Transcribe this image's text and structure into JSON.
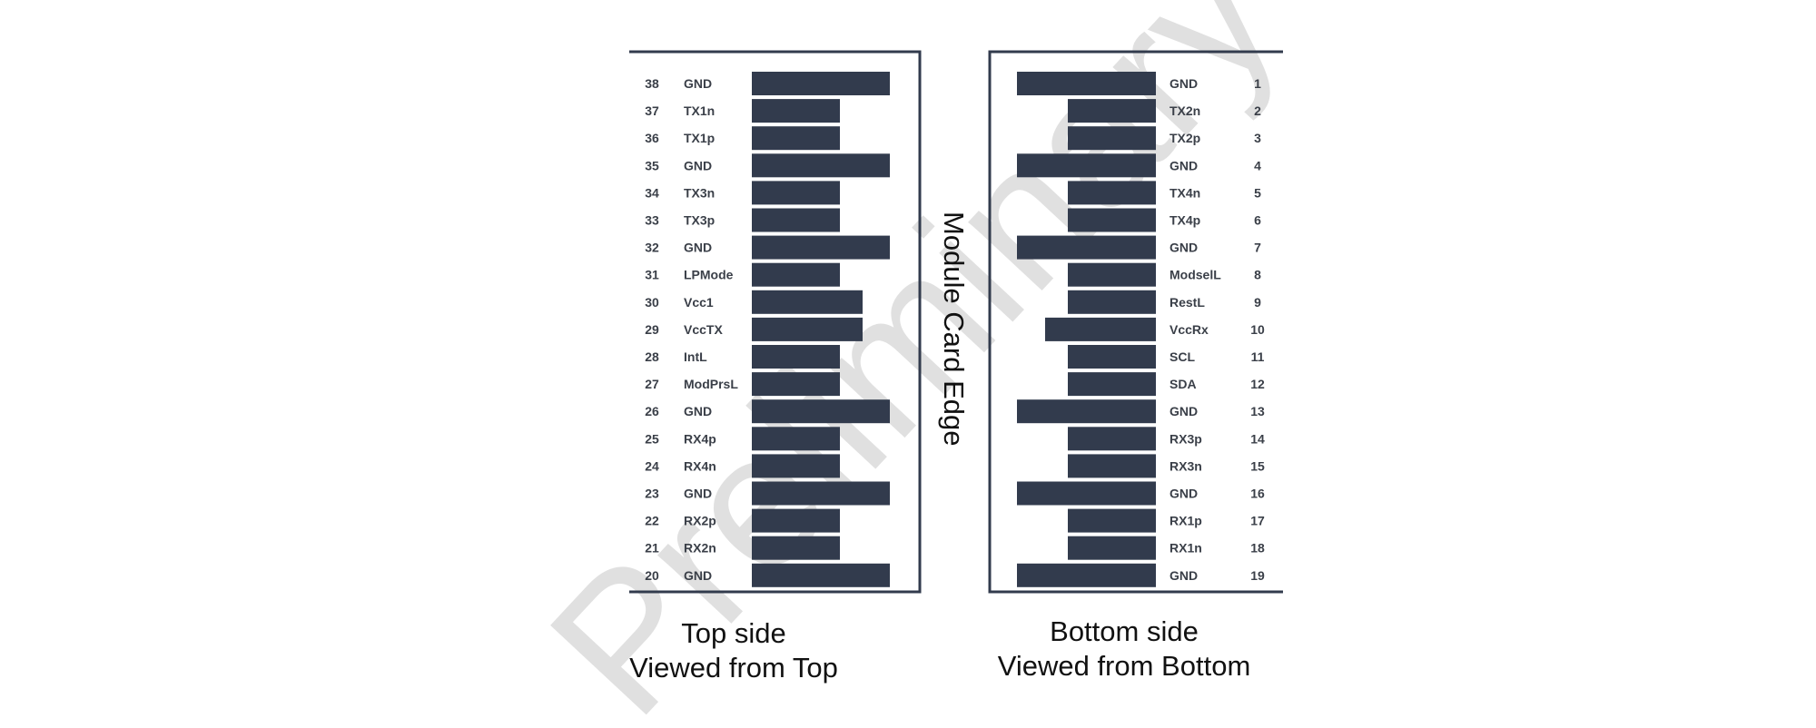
{
  "colors": {
    "pad": "#323b4d",
    "frame": "#323b4d",
    "watermark": "#c8c8c8"
  },
  "watermark": "Preliminary Version",
  "edge_label": "Module Card Edge",
  "top": {
    "caption_line1": "Top side",
    "caption_line2": "Viewed from Top",
    "pins": [
      {
        "num": "38",
        "name": "GND",
        "len": "long"
      },
      {
        "num": "37",
        "name": "TX1n",
        "len": "short"
      },
      {
        "num": "36",
        "name": "TX1p",
        "len": "short"
      },
      {
        "num": "35",
        "name": "GND",
        "len": "long"
      },
      {
        "num": "34",
        "name": "TX3n",
        "len": "short"
      },
      {
        "num": "33",
        "name": "TX3p",
        "len": "short"
      },
      {
        "num": "32",
        "name": "GND",
        "len": "long"
      },
      {
        "num": "31",
        "name": "LPMode",
        "len": "short"
      },
      {
        "num": "30",
        "name": "Vcc1",
        "len": "medium"
      },
      {
        "num": "29",
        "name": "VccTX",
        "len": "medium"
      },
      {
        "num": "28",
        "name": "IntL",
        "len": "short"
      },
      {
        "num": "27",
        "name": "ModPrsL",
        "len": "short"
      },
      {
        "num": "26",
        "name": "GND",
        "len": "long"
      },
      {
        "num": "25",
        "name": "RX4p",
        "len": "short"
      },
      {
        "num": "24",
        "name": "RX4n",
        "len": "short"
      },
      {
        "num": "23",
        "name": "GND",
        "len": "long"
      },
      {
        "num": "22",
        "name": "RX2p",
        "len": "short"
      },
      {
        "num": "21",
        "name": "RX2n",
        "len": "short"
      },
      {
        "num": "20",
        "name": "GND",
        "len": "long"
      }
    ]
  },
  "bottom": {
    "caption_line1": "Bottom side",
    "caption_line2": "Viewed from Bottom",
    "pins": [
      {
        "num": "1",
        "name": "GND",
        "len": "long"
      },
      {
        "num": "2",
        "name": "TX2n",
        "len": "short"
      },
      {
        "num": "3",
        "name": "TX2p",
        "len": "short"
      },
      {
        "num": "4",
        "name": "GND",
        "len": "long"
      },
      {
        "num": "5",
        "name": "TX4n",
        "len": "short"
      },
      {
        "num": "6",
        "name": "TX4p",
        "len": "short"
      },
      {
        "num": "7",
        "name": "GND",
        "len": "long"
      },
      {
        "num": "8",
        "name": "ModselL",
        "len": "short"
      },
      {
        "num": "9",
        "name": "RestL",
        "len": "short"
      },
      {
        "num": "10",
        "name": "VccRx",
        "len": "medium"
      },
      {
        "num": "11",
        "name": "SCL",
        "len": "short"
      },
      {
        "num": "12",
        "name": "SDA",
        "len": "short"
      },
      {
        "num": "13",
        "name": "GND",
        "len": "long"
      },
      {
        "num": "14",
        "name": "RX3p",
        "len": "short"
      },
      {
        "num": "15",
        "name": "RX3n",
        "len": "short"
      },
      {
        "num": "16",
        "name": "GND",
        "len": "long"
      },
      {
        "num": "17",
        "name": "RX1p",
        "len": "short"
      },
      {
        "num": "18",
        "name": "RX1n",
        "len": "short"
      },
      {
        "num": "19",
        "name": "GND",
        "len": "long"
      }
    ]
  }
}
